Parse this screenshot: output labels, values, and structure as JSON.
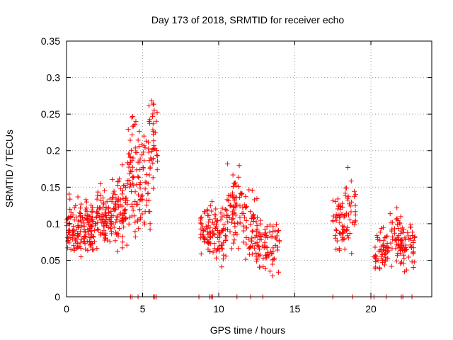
{
  "chart_data": {
    "type": "scatter",
    "title": "Day 173 of 2018, SRMTID for receiver echo",
    "xlabel": "GPS time / hours",
    "ylabel": "SRMTID / TECUs",
    "xlim": [
      0,
      24
    ],
    "ylim": [
      0,
      0.35
    ],
    "grid": true,
    "marker": "+",
    "color": "#ff0000",
    "x_ticks": [
      0,
      5,
      10,
      15,
      20
    ],
    "x_tick_labels": [
      "0",
      "5",
      "10",
      "15",
      "20"
    ],
    "y_ticks": [
      0,
      0.05,
      0.1,
      0.15,
      0.2,
      0.25,
      0.3,
      0.35
    ],
    "y_tick_labels": [
      "0",
      "0.05",
      "0.1",
      "0.15",
      "0.2",
      "0.25",
      "0.3",
      "0.35"
    ],
    "zero_markers_x": [
      4.2,
      4.3,
      4.7,
      5.7,
      5.8,
      5.9,
      8.7,
      9.4,
      9.5,
      9.6,
      11.2,
      12.1,
      12.9,
      17.5,
      18.8,
      20.0,
      20.2,
      21.0,
      22.0,
      22.1,
      22.7
    ],
    "clusters": [
      {
        "x_start": 0.0,
        "x_end": 1.0,
        "y_center": 0.09,
        "spread": 0.04,
        "count": 80
      },
      {
        "x_start": 1.0,
        "x_end": 2.0,
        "y_center": 0.095,
        "spread": 0.04,
        "count": 80
      },
      {
        "x_start": 2.0,
        "x_end": 3.0,
        "y_center": 0.105,
        "spread": 0.045,
        "count": 80
      },
      {
        "x_start": 3.0,
        "x_end": 4.0,
        "y_center": 0.12,
        "spread": 0.05,
        "count": 80
      },
      {
        "x_start": 4.0,
        "x_end": 4.6,
        "y_center": 0.17,
        "spread": 0.09,
        "count": 50
      },
      {
        "x_start": 4.6,
        "x_end": 5.5,
        "y_center": 0.15,
        "spread": 0.07,
        "count": 60
      },
      {
        "x_start": 5.3,
        "x_end": 6.0,
        "y_center": 0.21,
        "spread": 0.07,
        "count": 40
      },
      {
        "x_start": 8.8,
        "x_end": 9.5,
        "y_center": 0.09,
        "spread": 0.035,
        "count": 50
      },
      {
        "x_start": 9.5,
        "x_end": 10.5,
        "y_center": 0.085,
        "spread": 0.045,
        "count": 60
      },
      {
        "x_start": 10.5,
        "x_end": 11.6,
        "y_center": 0.125,
        "spread": 0.055,
        "count": 70
      },
      {
        "x_start": 11.6,
        "x_end": 12.6,
        "y_center": 0.095,
        "spread": 0.045,
        "count": 60
      },
      {
        "x_start": 12.6,
        "x_end": 14.0,
        "y_center": 0.07,
        "spread": 0.035,
        "count": 70
      },
      {
        "x_start": 17.5,
        "x_end": 18.3,
        "y_center": 0.105,
        "spread": 0.04,
        "count": 50
      },
      {
        "x_start": 18.3,
        "x_end": 19.0,
        "y_center": 0.115,
        "spread": 0.05,
        "count": 35
      },
      {
        "x_start": 20.2,
        "x_end": 21.2,
        "y_center": 0.065,
        "spread": 0.03,
        "count": 55
      },
      {
        "x_start": 21.2,
        "x_end": 22.0,
        "y_center": 0.08,
        "spread": 0.04,
        "count": 45
      },
      {
        "x_start": 22.0,
        "x_end": 22.9,
        "y_center": 0.07,
        "spread": 0.035,
        "count": 50
      }
    ]
  }
}
